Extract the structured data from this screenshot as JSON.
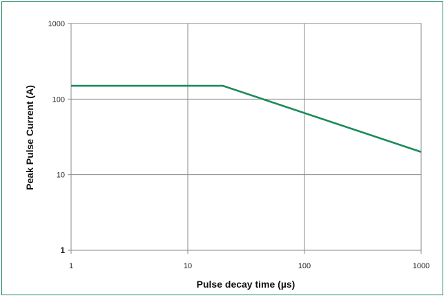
{
  "chart_data": {
    "type": "line",
    "title": "",
    "xlabel": "Pulse decay time (µs)",
    "ylabel": "Peak Pulse Current (A)",
    "x_scale": "log",
    "y_scale": "log",
    "xlim": [
      1,
      1000
    ],
    "ylim": [
      1,
      1000
    ],
    "x_ticks": [
      "1",
      "10",
      "100",
      "1000"
    ],
    "y_ticks": [
      "1",
      "10",
      "100",
      "1000"
    ],
    "grid": true,
    "legend": "none",
    "series": [
      {
        "color": "#1a8a5a",
        "points": [
          {
            "x": 1,
            "y": 150
          },
          {
            "x": 20,
            "y": 150
          },
          {
            "x": 1000,
            "y": 20
          }
        ]
      }
    ]
  },
  "colors": {
    "frame": "#1a8a5a",
    "grid": "#888888",
    "axis": "#888888",
    "line": "#1a8a5a"
  }
}
